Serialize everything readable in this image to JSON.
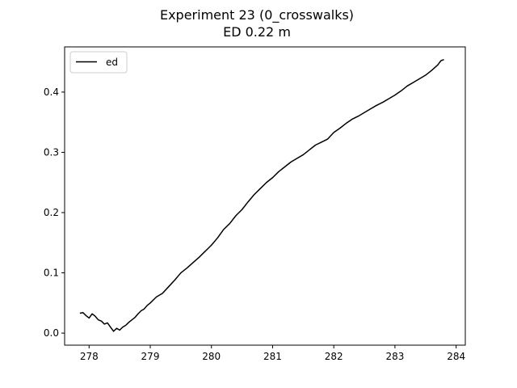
{
  "chart_data": {
    "type": "line",
    "title": "Experiment 23 (0_crosswalks)",
    "subtitle": "ED 0.22 m",
    "xlabel": "",
    "ylabel": "",
    "xlim": [
      277.6,
      284.15
    ],
    "ylim": [
      -0.02,
      0.475
    ],
    "xticks": [
      278,
      279,
      280,
      281,
      282,
      283,
      284
    ],
    "yticks": [
      0.0,
      0.1,
      0.2,
      0.3,
      0.4
    ],
    "ytick_labels": [
      "0.0",
      "0.1",
      "0.2",
      "0.3",
      "0.4"
    ],
    "grid": false,
    "legend_position": "top-left",
    "series": [
      {
        "name": "ed",
        "color": "#000000",
        "x": [
          277.85,
          277.9,
          277.95,
          278.0,
          278.05,
          278.1,
          278.15,
          278.2,
          278.25,
          278.3,
          278.35,
          278.4,
          278.45,
          278.5,
          278.55,
          278.6,
          278.65,
          278.7,
          278.75,
          278.8,
          278.85,
          278.9,
          278.95,
          279.0,
          279.1,
          279.2,
          279.3,
          279.4,
          279.5,
          279.6,
          279.7,
          279.8,
          279.9,
          280.0,
          280.1,
          280.2,
          280.3,
          280.4,
          280.5,
          280.6,
          280.7,
          280.8,
          280.9,
          281.0,
          281.1,
          281.2,
          281.3,
          281.4,
          281.5,
          281.6,
          281.7,
          281.8,
          281.9,
          282.0,
          282.1,
          282.2,
          282.3,
          282.4,
          282.5,
          282.6,
          282.7,
          282.8,
          282.9,
          283.0,
          283.1,
          283.2,
          283.3,
          283.4,
          283.5,
          283.6,
          283.7,
          283.75,
          283.8
        ],
        "y": [
          0.033,
          0.034,
          0.029,
          0.025,
          0.032,
          0.028,
          0.022,
          0.02,
          0.015,
          0.017,
          0.01,
          0.003,
          0.008,
          0.005,
          0.01,
          0.013,
          0.018,
          0.022,
          0.026,
          0.032,
          0.037,
          0.04,
          0.046,
          0.05,
          0.06,
          0.066,
          0.077,
          0.088,
          0.1,
          0.108,
          0.117,
          0.126,
          0.136,
          0.146,
          0.158,
          0.172,
          0.182,
          0.195,
          0.205,
          0.218,
          0.23,
          0.24,
          0.25,
          0.258,
          0.268,
          0.276,
          0.284,
          0.29,
          0.296,
          0.304,
          0.312,
          0.317,
          0.322,
          0.333,
          0.34,
          0.348,
          0.355,
          0.36,
          0.366,
          0.372,
          0.378,
          0.383,
          0.389,
          0.395,
          0.402,
          0.41,
          0.416,
          0.422,
          0.428,
          0.436,
          0.445,
          0.452,
          0.454
        ]
      }
    ]
  }
}
